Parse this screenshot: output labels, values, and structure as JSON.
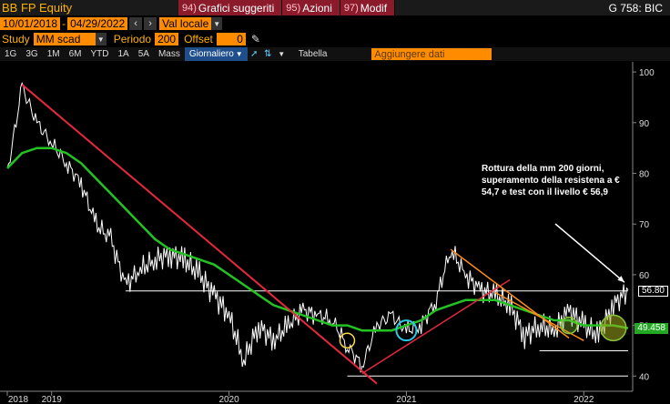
{
  "header": {
    "ticker": "BB FP Equity",
    "menu": [
      {
        "num": "94)",
        "label": "Grafici suggeriti"
      },
      {
        "num": "95)",
        "label": "Azioni"
      },
      {
        "num": "97)",
        "label": "Modif"
      }
    ],
    "right": "G 758: BIC"
  },
  "controls": {
    "date_from": "10/01/2018",
    "date_to": "04/29/2022",
    "currency": "Val locale",
    "study_label": "Study",
    "study_value": "MM scad",
    "periodo_label": "Periodo",
    "periodo_value": "200",
    "offset_label": "Offset",
    "offset_value": "0"
  },
  "toolbar": {
    "periods": [
      "1G",
      "3G",
      "1M",
      "6M",
      "YTD",
      "1A",
      "5A",
      "Mass"
    ],
    "frequency": "Giornaliero",
    "table_label": "Tabella",
    "add_data_placeholder": "Aggiungere dati"
  },
  "colors": {
    "price": "#ffffff",
    "ma200": "#22c322",
    "trendline": "#e8283c",
    "channel": "#ff8c1a",
    "support": "#ffffff",
    "circle_yellow": "#ffd84a",
    "circle_cyan": "#28c8e6",
    "circle_green": "#8ac43a",
    "tag_bg": "#22a822"
  },
  "chart_data": {
    "type": "line",
    "x": [
      "2018-10",
      "2018-11",
      "2018-12",
      "2019-01",
      "2019-02",
      "2019-03",
      "2019-04",
      "2019-05",
      "2019-06",
      "2019-07",
      "2019-08",
      "2019-09",
      "2019-10",
      "2019-11",
      "2019-12",
      "2020-01",
      "2020-02",
      "2020-03",
      "2020-04",
      "2020-05",
      "2020-06",
      "2020-07",
      "2020-08",
      "2020-09",
      "2020-10",
      "2020-11",
      "2020-12",
      "2021-01",
      "2021-02",
      "2021-03",
      "2021-04",
      "2021-05",
      "2021-06",
      "2021-07",
      "2021-08",
      "2021-09",
      "2021-10",
      "2021-11",
      "2021-12",
      "2022-01",
      "2022-02",
      "2022-03",
      "2022-04"
    ],
    "series": [
      {
        "values": [
          80,
          97,
          90,
          86,
          82,
          78,
          70,
          67,
          58,
          61,
          63,
          64,
          63,
          60,
          56,
          52,
          43,
          50,
          47,
          50,
          53,
          52,
          51,
          46,
          42,
          50,
          52,
          49,
          50,
          55,
          65,
          60,
          57,
          56,
          54,
          48,
          50,
          49,
          53,
          50,
          48,
          54,
          57
        ]
      },
      {
        "values": [
          81,
          84,
          85,
          85,
          84,
          82,
          79,
          76,
          73,
          70,
          67,
          65,
          64,
          63,
          62,
          60,
          58,
          56,
          54,
          53,
          52,
          51,
          50,
          50,
          49,
          49,
          49,
          50,
          51,
          53,
          54,
          55,
          55,
          55,
          54,
          53,
          52,
          51,
          51,
          50,
          50,
          50,
          49.458
        ]
      }
    ],
    "x_tick_labels": [
      "2018",
      "2019",
      "2020",
      "2021",
      "2022"
    ],
    "y_ticks": [
      40,
      50,
      60,
      70,
      80,
      90,
      100
    ],
    "ylim": [
      37,
      102
    ],
    "last_price": "56.80",
    "ma_last": "49.458",
    "annotation": "Rottura della mm 200 giorni, superamento della resistena a € 54,7 e test con il livello € 56,9",
    "support_levels": [
      56.8,
      45,
      40
    ]
  }
}
